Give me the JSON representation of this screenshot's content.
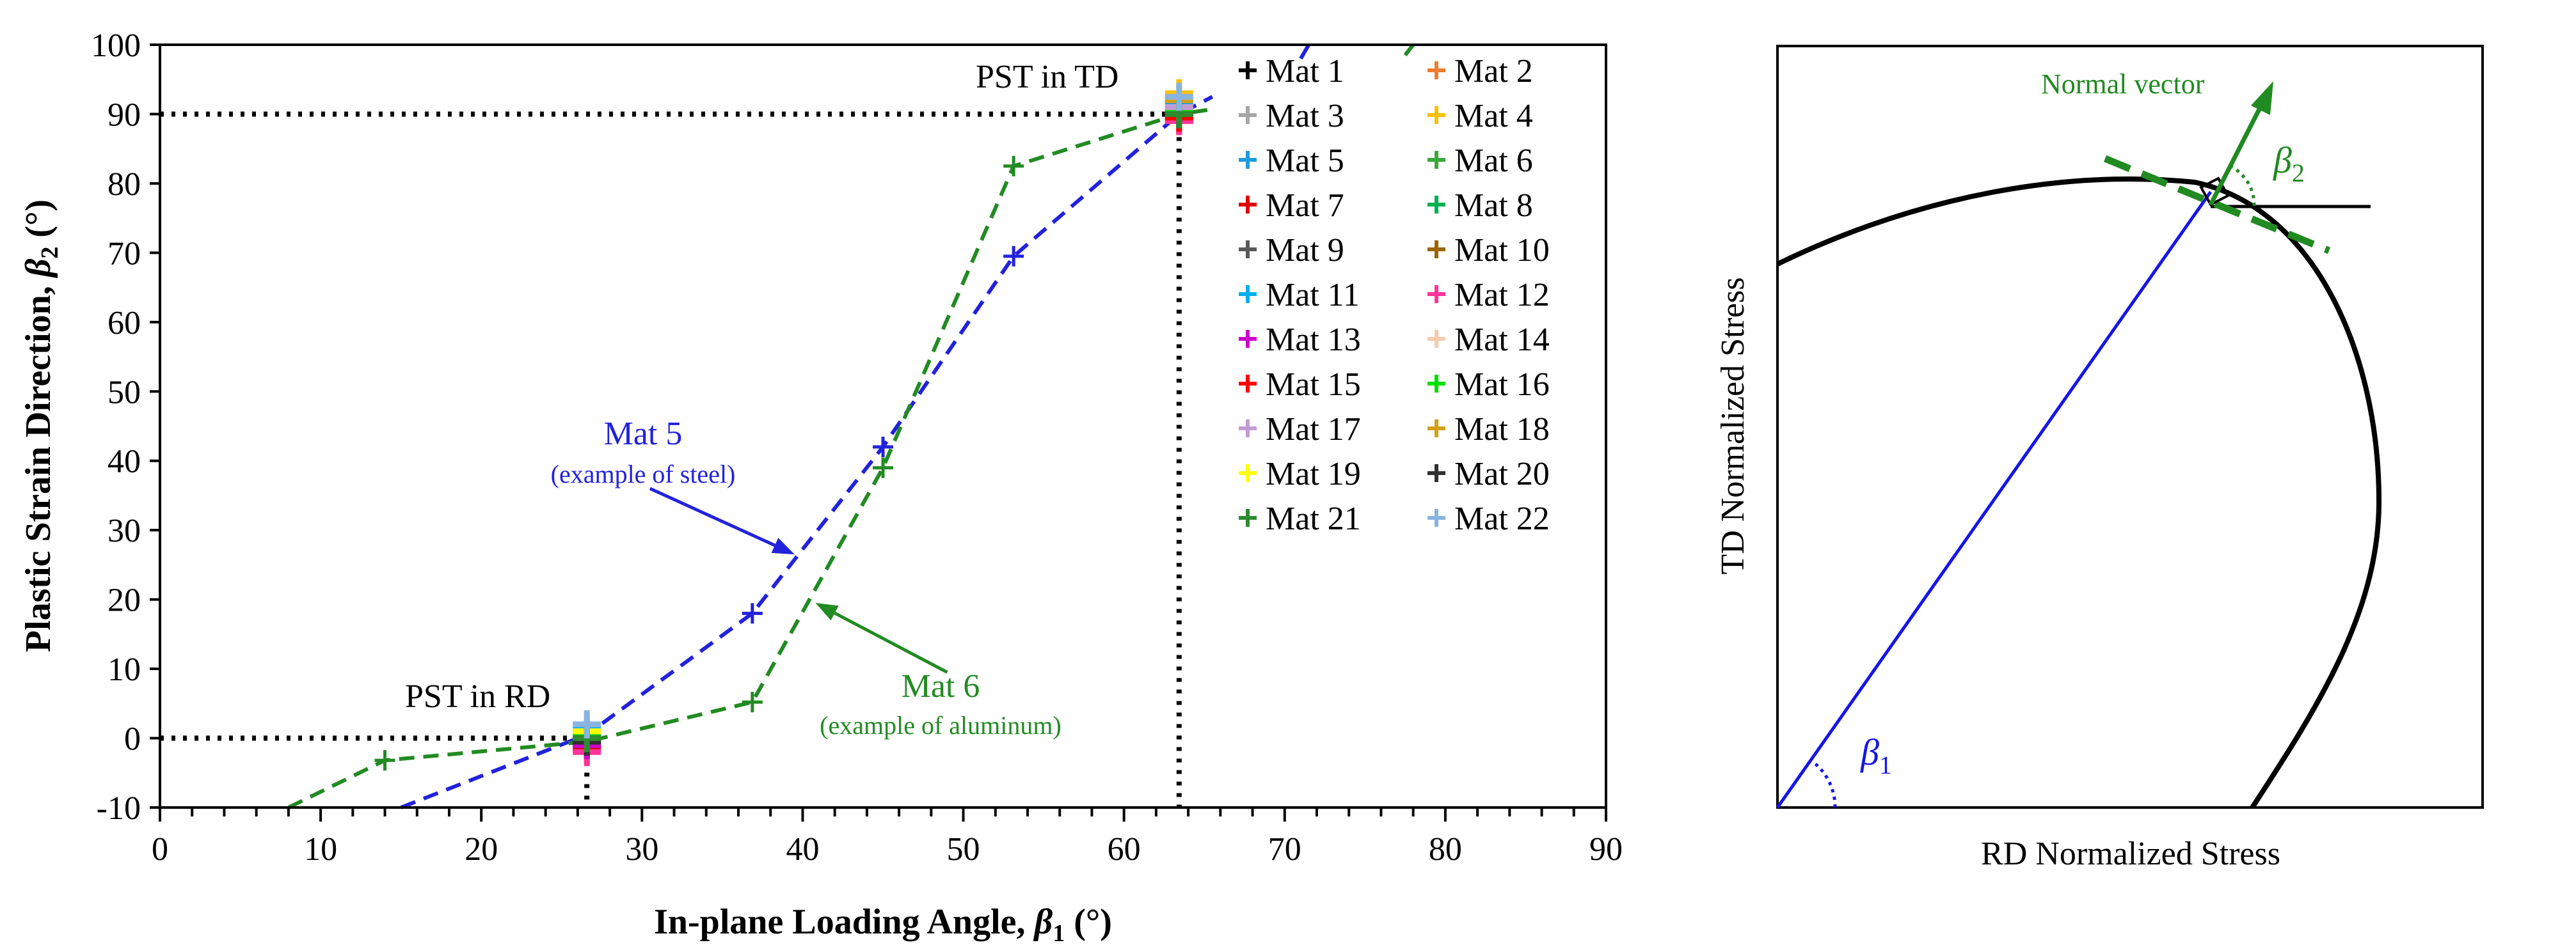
{
  "chart_data": [
    {
      "type": "scatter",
      "title": "",
      "xlabel_parts": [
        "In-plane Loading Angle, ",
        "β",
        "1",
        " (°)"
      ],
      "ylabel_parts": [
        "Plastic Strain Direction, ",
        "β",
        "2",
        " (°)"
      ],
      "xlim": [
        0,
        90
      ],
      "ylim": [
        -10,
        100
      ],
      "xticks": [
        0,
        10,
        20,
        30,
        40,
        50,
        60,
        70,
        80,
        90
      ],
      "yticks": [
        -10,
        0,
        10,
        20,
        30,
        40,
        50,
        60,
        70,
        80,
        90,
        100
      ],
      "x_minor_step": 2,
      "grid": false,
      "legend_position": "top-right",
      "reference_lines": [
        {
          "from": [
            0,
            0
          ],
          "to": [
            26.57,
            0
          ]
        },
        {
          "from": [
            26.57,
            0
          ],
          "to": [
            26.57,
            -10
          ]
        },
        {
          "from": [
            0,
            90
          ],
          "to": [
            63.43,
            90
          ]
        },
        {
          "from": [
            63.43,
            90
          ],
          "to": [
            63.43,
            -10
          ]
        }
      ],
      "series": [
        {
          "name": "Mat 1",
          "color": "#000000",
          "points": [
            [
              26.57,
              0
            ],
            [
              63.43,
              90
            ]
          ]
        },
        {
          "name": "Mat 2",
          "color": "#ED7D31",
          "points": [
            [
              26.57,
              -1
            ],
            [
              63.43,
              91
            ]
          ]
        },
        {
          "name": "Mat 3",
          "color": "#A5A5A5",
          "points": [
            [
              26.57,
              0.5
            ],
            [
              63.43,
              90.5
            ]
          ]
        },
        {
          "name": "Mat 4",
          "color": "#FFC000",
          "points": [
            [
              26.57,
              1
            ],
            [
              63.43,
              93
            ]
          ]
        },
        {
          "name": "Mat 5",
          "color": "#1F9BDE",
          "points": [
            [
              26.57,
              0.5
            ],
            [
              63.43,
              91.5
            ]
          ]
        },
        {
          "name": "Mat 6",
          "color": "#3AA83A",
          "points": [
            [
              26.57,
              -0.5
            ],
            [
              63.43,
              90.5
            ]
          ]
        },
        {
          "name": "Mat 7",
          "color": "#E00000",
          "points": [
            [
              26.57,
              -1.5
            ],
            [
              63.43,
              89.5
            ]
          ]
        },
        {
          "name": "Mat 8",
          "color": "#00B050",
          "points": [
            [
              26.57,
              0
            ],
            [
              63.43,
              90
            ]
          ]
        },
        {
          "name": "Mat 9",
          "color": "#595959",
          "points": [
            [
              26.57,
              -1
            ],
            [
              63.43,
              89
            ]
          ]
        },
        {
          "name": "Mat 10",
          "color": "#996600",
          "points": [
            [
              26.57,
              0
            ],
            [
              63.43,
              90
            ]
          ]
        },
        {
          "name": "Mat 11",
          "color": "#00B0F0",
          "points": [
            [
              26.57,
              1.5
            ],
            [
              63.43,
              92
            ]
          ]
        },
        {
          "name": "Mat 12",
          "color": "#FF3399",
          "points": [
            [
              26.57,
              -2
            ],
            [
              63.43,
              89
            ]
          ]
        },
        {
          "name": "Mat 13",
          "color": "#CC00CC",
          "points": [
            [
              26.57,
              -1
            ],
            [
              63.43,
              90
            ]
          ]
        },
        {
          "name": "Mat 14",
          "color": "#F8CBAD",
          "points": [
            [
              26.57,
              0.5
            ],
            [
              63.43,
              91
            ]
          ]
        },
        {
          "name": "Mat 15",
          "color": "#FF0000",
          "points": [
            [
              26.57,
              -0.5
            ],
            [
              63.43,
              89.5
            ]
          ]
        },
        {
          "name": "Mat 16",
          "color": "#00E000",
          "points": [
            [
              26.57,
              0.5
            ],
            [
              63.43,
              90.5
            ]
          ]
        },
        {
          "name": "Mat 17",
          "color": "#C39BD3",
          "points": [
            [
              26.57,
              1
            ],
            [
              63.43,
              91
            ]
          ]
        },
        {
          "name": "Mat 18",
          "color": "#D4A017",
          "points": [
            [
              26.57,
              0
            ],
            [
              63.43,
              92
            ]
          ]
        },
        {
          "name": "Mat 19",
          "color": "#FFFF00",
          "points": [
            [
              26.57,
              1
            ],
            [
              63.43,
              92.5
            ]
          ]
        },
        {
          "name": "Mat 20",
          "color": "#303030",
          "points": [
            [
              26.57,
              -0.5
            ],
            [
              63.43,
              90
            ]
          ]
        },
        {
          "name": "Mat 21",
          "color": "#2E8B2E",
          "points": [
            [
              26.57,
              0
            ],
            [
              63.43,
              90
            ]
          ]
        },
        {
          "name": "Mat 22",
          "color": "#8AB4E0",
          "points": [
            [
              26.57,
              2
            ],
            [
              63.43,
              92.5
            ]
          ]
        }
      ],
      "highlighted_curves": [
        {
          "name": "Mat 5",
          "color": "#2222DD",
          "dashed": true,
          "line": [
            [
              15,
              -10
            ],
            [
              26.57,
              0.5
            ],
            [
              36.87,
              18
            ],
            [
              45,
              42
            ],
            [
              53.13,
              69.5
            ],
            [
              63.43,
              90
            ],
            [
              65.5,
              92.5
            ]
          ],
          "markers": [
            [
              36.87,
              18
            ],
            [
              45,
              42
            ],
            [
              53.13,
              69.5
            ]
          ]
        },
        {
          "name": "Mat 6",
          "color": "#228B22",
          "dashed": true,
          "line": [
            [
              8,
              -10
            ],
            [
              14,
              -3.2
            ],
            [
              26.57,
              -0.5
            ],
            [
              36.87,
              5.2
            ],
            [
              45,
              39
            ],
            [
              53.13,
              82.5
            ],
            [
              63.43,
              90
            ],
            [
              65.5,
              90.7
            ]
          ],
          "markers": [
            [
              14,
              -3.2
            ],
            [
              36.87,
              5.2
            ],
            [
              45,
              39
            ],
            [
              53.13,
              82.5
            ]
          ]
        }
      ],
      "annotations": [
        {
          "name": "pst-rd",
          "text": "PST in RD",
          "color": "#000000"
        },
        {
          "name": "pst-td",
          "text": "PST in TD",
          "color": "#000000"
        },
        {
          "name": "mat5-title",
          "text": "Mat 5",
          "color": "#2222DD"
        },
        {
          "name": "mat5-sub",
          "text": "(example of steel)",
          "color": "#2222DD"
        },
        {
          "name": "mat6-title",
          "text": "Mat 6",
          "color": "#228B22"
        },
        {
          "name": "mat6-sub",
          "text": "(example of aluminum)",
          "color": "#228B22"
        }
      ],
      "arrows": [
        {
          "name": "mat5-arrow",
          "color": "#2222DD",
          "from": [
            30.5,
            36
          ],
          "to": [
            39.5,
            26.5
          ]
        },
        {
          "name": "mat6-arrow",
          "color": "#228B22",
          "from": [
            49,
            9.5
          ],
          "to": [
            40.8,
            19.5
          ]
        }
      ],
      "stray_lines": [
        {
          "color": "#2222DD",
          "from": [
            71,
            98
          ],
          "to": [
            71.5,
            100
          ]
        },
        {
          "color": "#228B22",
          "from": [
            77.5,
            98.5
          ],
          "to": [
            78,
            100
          ]
        }
      ]
    },
    {
      "type": "diagram",
      "xlabel": "RD Normalized Stress",
      "ylabel": "TD Normalized Stress",
      "labels": {
        "normal_vector": "Normal vector",
        "beta": "β",
        "beta1_sub": "1",
        "beta2_sub": "2"
      },
      "colors": {
        "curve": "#000000",
        "loading_line": "#1515E8",
        "normal": "#218A21"
      }
    }
  ]
}
